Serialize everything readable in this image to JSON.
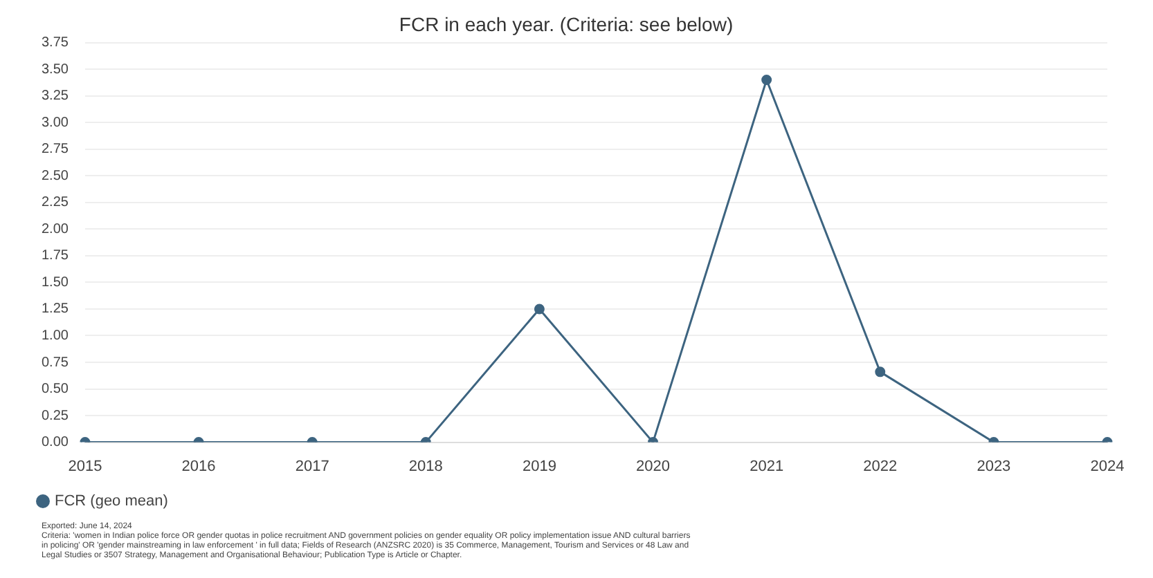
{
  "chart_data": {
    "type": "line",
    "title": "FCR in each year. (Criteria: see below)",
    "categories": [
      "2015",
      "2016",
      "2017",
      "2018",
      "2019",
      "2020",
      "2021",
      "2022",
      "2023",
      "2024"
    ],
    "series": [
      {
        "name": "FCR (geo mean)",
        "color": "#3d6480",
        "values": [
          0,
          0,
          0,
          0,
          1.25,
          0,
          3.4,
          0.66,
          0,
          0
        ]
      }
    ],
    "ylim": [
      0,
      3.75
    ],
    "yticks": [
      {
        "value": 0,
        "label": "0.00"
      },
      {
        "value": 0.25,
        "label": "0.25"
      },
      {
        "value": 0.5,
        "label": "0.50"
      },
      {
        "value": 0.75,
        "label": "0.75"
      },
      {
        "value": 1,
        "label": "1.00"
      },
      {
        "value": 1.25,
        "label": "1.25"
      },
      {
        "value": 1.5,
        "label": "1.50"
      },
      {
        "value": 1.75,
        "label": "1.75"
      },
      {
        "value": 2,
        "label": "2.00"
      },
      {
        "value": 2.25,
        "label": "2.25"
      },
      {
        "value": 2.5,
        "label": "2.50"
      },
      {
        "value": 2.75,
        "label": "2.75"
      },
      {
        "value": 3,
        "label": "3.00"
      },
      {
        "value": 3.25,
        "label": "3.25"
      },
      {
        "value": 3.5,
        "label": "3.50"
      },
      {
        "value": 3.75,
        "label": "3.75"
      }
    ],
    "grid": "y",
    "legend": "bottom left",
    "marker": "circle",
    "line_style": "solid",
    "annotations": [
      "Exported: June 14, 2024",
      "Criteria: 'women in Indian police force OR gender quotas in police recruitment AND government policies on gender equality OR policy implementation issue AND cultural barriers in policing' OR 'gender mainstreaming in law enforcement ' in full data; Fields of Research (ANZSRC 2020) is 35 Commerce, Management, Tourism and Services or 48 Law and Legal Studies or 3507 Strategy, Management and Organisational Behaviour; Publication Type is Article or Chapter."
    ]
  }
}
